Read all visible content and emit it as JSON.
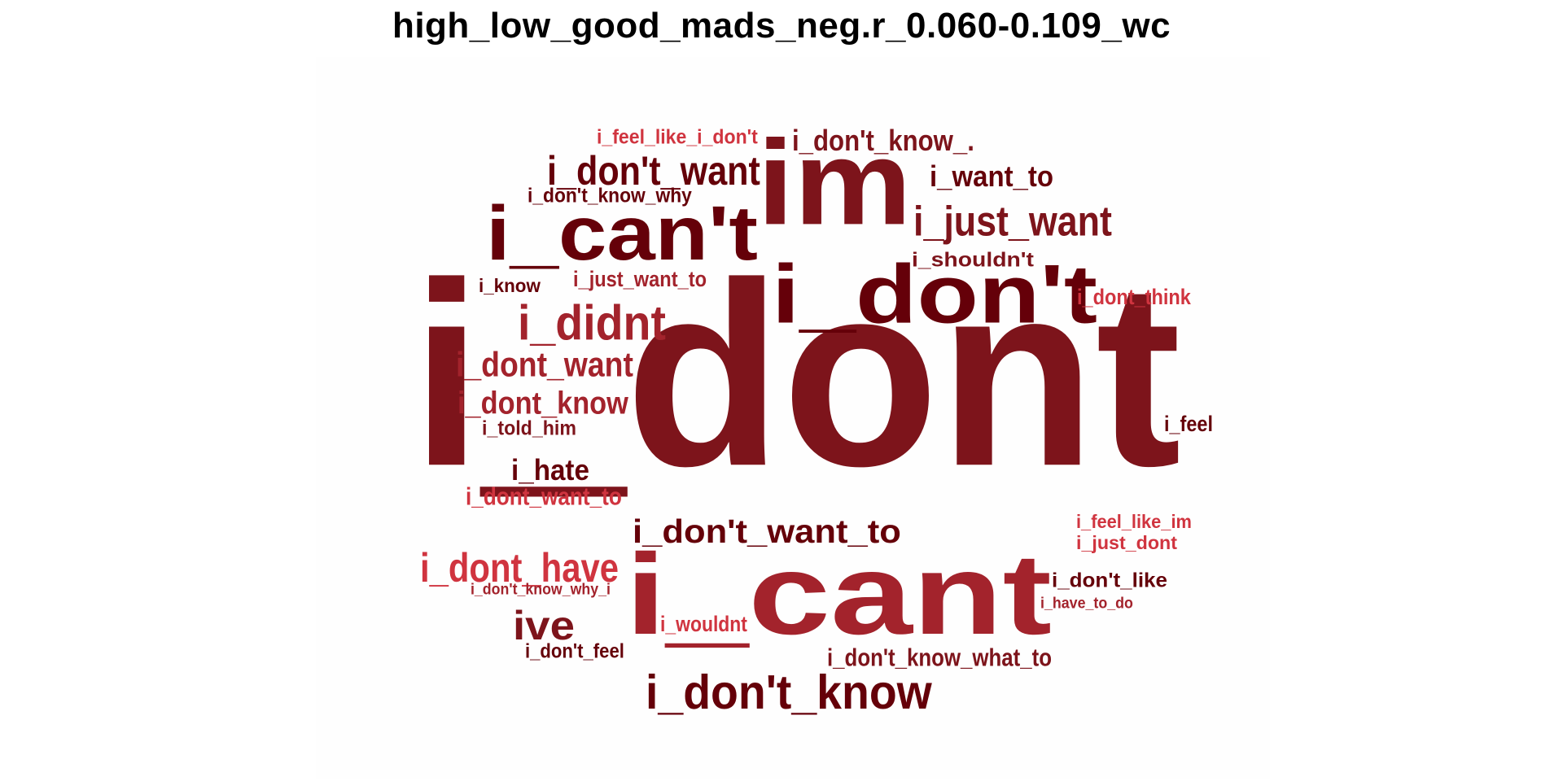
{
  "title": "high_low_good_mads_neg.r_0.060-0.109_wc",
  "palette": {
    "dark": "#650009",
    "mid": "#7d141b",
    "red": "#a3232c",
    "light": "#d0343f"
  },
  "words": [
    {
      "id": "i-dont",
      "text": "i_dont",
      "color": "#7d141b"
    },
    {
      "id": "i-cant",
      "text": "i_cant",
      "color": "#a3232c"
    },
    {
      "id": "im",
      "text": "im",
      "color": "#7d141b"
    },
    {
      "id": "i-cant-apos",
      "text": "i_can't",
      "color": "#650009"
    },
    {
      "id": "i-dont-apos",
      "text": "i_don't",
      "color": "#650009"
    },
    {
      "id": "i-dont-know-apos",
      "text": "i_don't_know",
      "color": "#650009"
    },
    {
      "id": "i-dont-want-apos",
      "text": "i_don't_want",
      "color": "#650009"
    },
    {
      "id": "i-dont-want-to-apos",
      "text": "i_don't_want_to",
      "color": "#650009"
    },
    {
      "id": "i-didnt",
      "text": "i_didnt",
      "color": "#a3232c"
    },
    {
      "id": "i-dont-have",
      "text": "i_dont_have",
      "color": "#d0343f"
    },
    {
      "id": "i-just-want",
      "text": "i_just_want",
      "color": "#7d141b"
    },
    {
      "id": "ive",
      "text": "ive",
      "color": "#7d141b"
    },
    {
      "id": "i-dont-want",
      "text": "i_dont_want",
      "color": "#a3232c"
    },
    {
      "id": "i-dont-know",
      "text": "i_dont_know",
      "color": "#a3232c"
    },
    {
      "id": "i-dont-know-period",
      "text": "i_don't_know_.",
      "color": "#7d141b"
    },
    {
      "id": "i-want-to",
      "text": "i_want_to",
      "color": "#650009"
    },
    {
      "id": "i-hate",
      "text": "i_hate",
      "color": "#650009"
    },
    {
      "id": "i-dont-want-to",
      "text": "i_dont_want_to",
      "color": "#d0343f"
    },
    {
      "id": "i-dont-know-what-to",
      "text": "i_don't_know_what_to",
      "color": "#7d141b"
    },
    {
      "id": "i-feel-like-i-dont",
      "text": "i_feel_like_i_don't",
      "color": "#d0343f"
    },
    {
      "id": "i-just-want-to",
      "text": "i_just_want_to",
      "color": "#a3232c"
    },
    {
      "id": "i-dont-know-why",
      "text": "i_don't_know_why",
      "color": "#650009"
    },
    {
      "id": "i-shouldnt",
      "text": "i_shouldn't",
      "color": "#7d141b"
    },
    {
      "id": "i-dont-think",
      "text": "i_dont_think",
      "color": "#d0343f"
    },
    {
      "id": "i-told-him",
      "text": "i_told_him",
      "color": "#7d141b"
    },
    {
      "id": "i-feel",
      "text": "i_feel",
      "color": "#650009"
    },
    {
      "id": "i-know",
      "text": "i_know",
      "color": "#650009"
    },
    {
      "id": "i-feel-like-im",
      "text": "i_feel_like_im",
      "color": "#d0343f"
    },
    {
      "id": "i-just-dont",
      "text": "i_just_dont",
      "color": "#d0343f"
    },
    {
      "id": "i-dont-like",
      "text": "i_don't_like",
      "color": "#650009"
    },
    {
      "id": "i-have-to-do",
      "text": "i_have_to_do",
      "color": "#a3232c"
    },
    {
      "id": "i-wouldnt",
      "text": "i_wouldnt",
      "color": "#d0343f"
    },
    {
      "id": "i-dont-feel",
      "text": "i_don't_feel",
      "color": "#650009"
    },
    {
      "id": "i-dont-know-why-i",
      "text": "i_don't_know_why_i",
      "color": "#a3232c"
    }
  ]
}
